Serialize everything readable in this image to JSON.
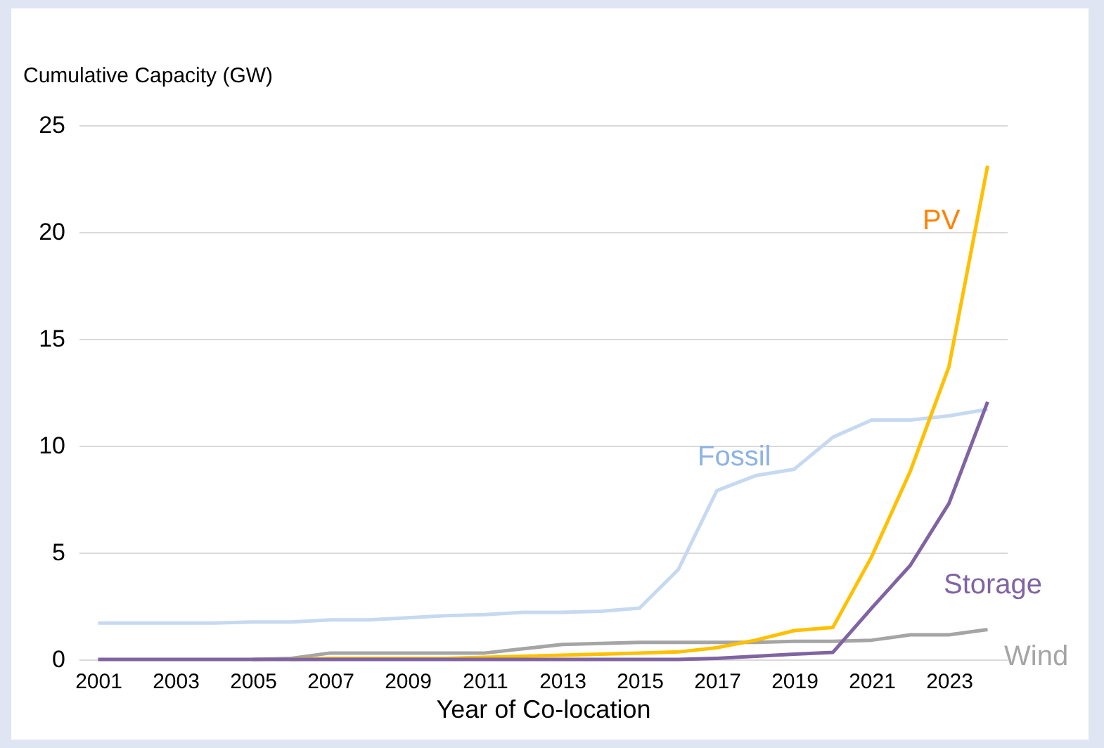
{
  "chart_data": {
    "type": "line",
    "xlabel": "Year of Co-location",
    "ylabel": "Cumulative Capacity (GW)",
    "categories": [
      "2001",
      null,
      "2003",
      null,
      "2005",
      null,
      "2007",
      null,
      "2009",
      null,
      "2011",
      null,
      "2013",
      null,
      "2015",
      null,
      "2017",
      null,
      "2019",
      null,
      "2021",
      null,
      "2023",
      null
    ],
    "ylim": [
      0,
      25
    ],
    "yticks": [
      0,
      5,
      10,
      15,
      20,
      25
    ],
    "grid": "y",
    "marker": "none",
    "line_style": "solid",
    "series": [
      {
        "name": "Fossil",
        "color": "#c6d9f1",
        "values": [
          1.7,
          1.7,
          1.7,
          1.7,
          1.75,
          1.75,
          1.85,
          1.85,
          1.95,
          2.05,
          2.1,
          2.2,
          2.2,
          2.25,
          2.4,
          4.2,
          7.9,
          8.6,
          8.9,
          10.4,
          11.2,
          11.2,
          11.4,
          11.7
        ]
      },
      {
        "name": "Wind",
        "color": "#a5a5a5",
        "values": [
          null,
          null,
          null,
          null,
          0,
          0.05,
          0.3,
          0.3,
          0.3,
          0.3,
          0.3,
          0.5,
          0.7,
          0.75,
          0.8,
          0.8,
          0.8,
          0.8,
          0.85,
          0.85,
          0.9,
          1.15,
          1.15,
          1.4
        ]
      },
      {
        "name": "PV",
        "color": "#ffc000",
        "values": [
          null,
          null,
          null,
          null,
          null,
          0,
          0.05,
          0.05,
          0.05,
          0.05,
          0.1,
          0.15,
          0.2,
          0.25,
          0.3,
          0.35,
          0.55,
          0.9,
          1.35,
          1.5,
          4.8,
          8.8,
          13.7,
          23.1
        ]
      },
      {
        "name": "Storage",
        "color": "#8064a2",
        "values": [
          0,
          0,
          0,
          0,
          0,
          0,
          0,
          0,
          0,
          0,
          0,
          0,
          0,
          0,
          0,
          0,
          0.05,
          0.15,
          0.25,
          0.33,
          2.4,
          4.4,
          7.3,
          12.05
        ]
      }
    ]
  }
}
